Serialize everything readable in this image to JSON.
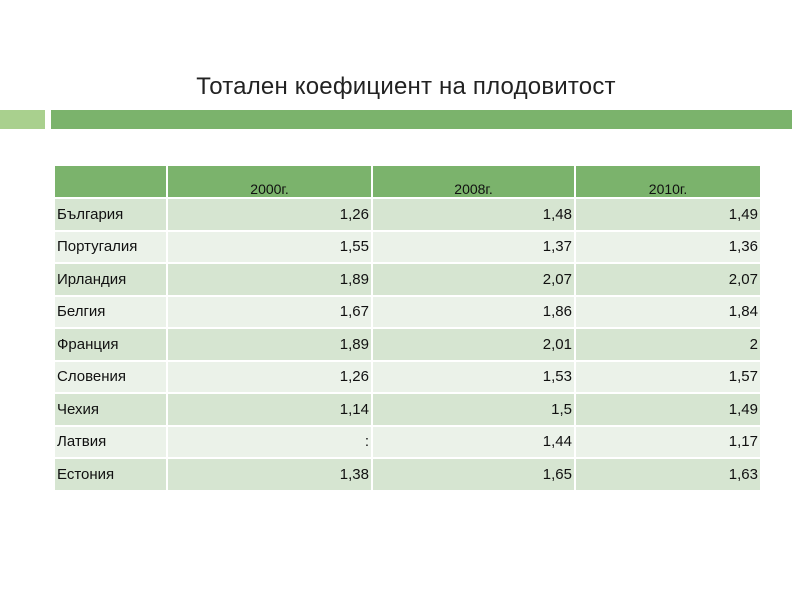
{
  "title": "Тотален коефициент на плодовитост",
  "table": {
    "headers": [
      "",
      "2000г.",
      "2008г.",
      "2010г."
    ],
    "rows": [
      {
        "country": "България",
        "values": [
          "1,26",
          "1,48",
          "1,49"
        ]
      },
      {
        "country": "Португалия",
        "values": [
          "1,55",
          "1,37",
          "1,36"
        ]
      },
      {
        "country": "Ирландия",
        "values": [
          "1,89",
          "2,07",
          "2,07"
        ]
      },
      {
        "country": "Белгия",
        "values": [
          "1,67",
          "1,86",
          "1,84"
        ]
      },
      {
        "country": "Франция",
        "values": [
          "1,89",
          "2,01",
          "2"
        ]
      },
      {
        "country": "Словения",
        "values": [
          "1,26",
          "1,53",
          "1,57"
        ]
      },
      {
        "country": "Чехия",
        "values": [
          "1,14",
          "1,5",
          "1,49"
        ]
      },
      {
        "country": "Латвия",
        "values": [
          ":",
          "1,44",
          "1,17"
        ]
      },
      {
        "country": "Естония",
        "values": [
          "1,38",
          "1,65",
          "1,63"
        ]
      }
    ]
  },
  "colors": {
    "header_green": "#7bb36c",
    "accent_light_green": "#a9d08e",
    "row_dark": "#d6e5d1",
    "row_light": "#ebf2e9"
  }
}
